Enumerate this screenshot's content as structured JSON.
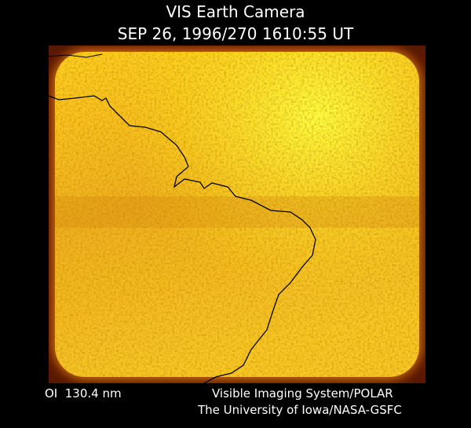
{
  "header": {
    "title": "VIS Earth Camera",
    "timestamp": "SEP 26, 1996/270 1610:55 UT"
  },
  "footer": {
    "wavelength": "OI  130.4 nm",
    "instrument": "Visible Imaging System/POLAR",
    "credit": "The University of Iowa/NASA-GSFC"
  }
}
